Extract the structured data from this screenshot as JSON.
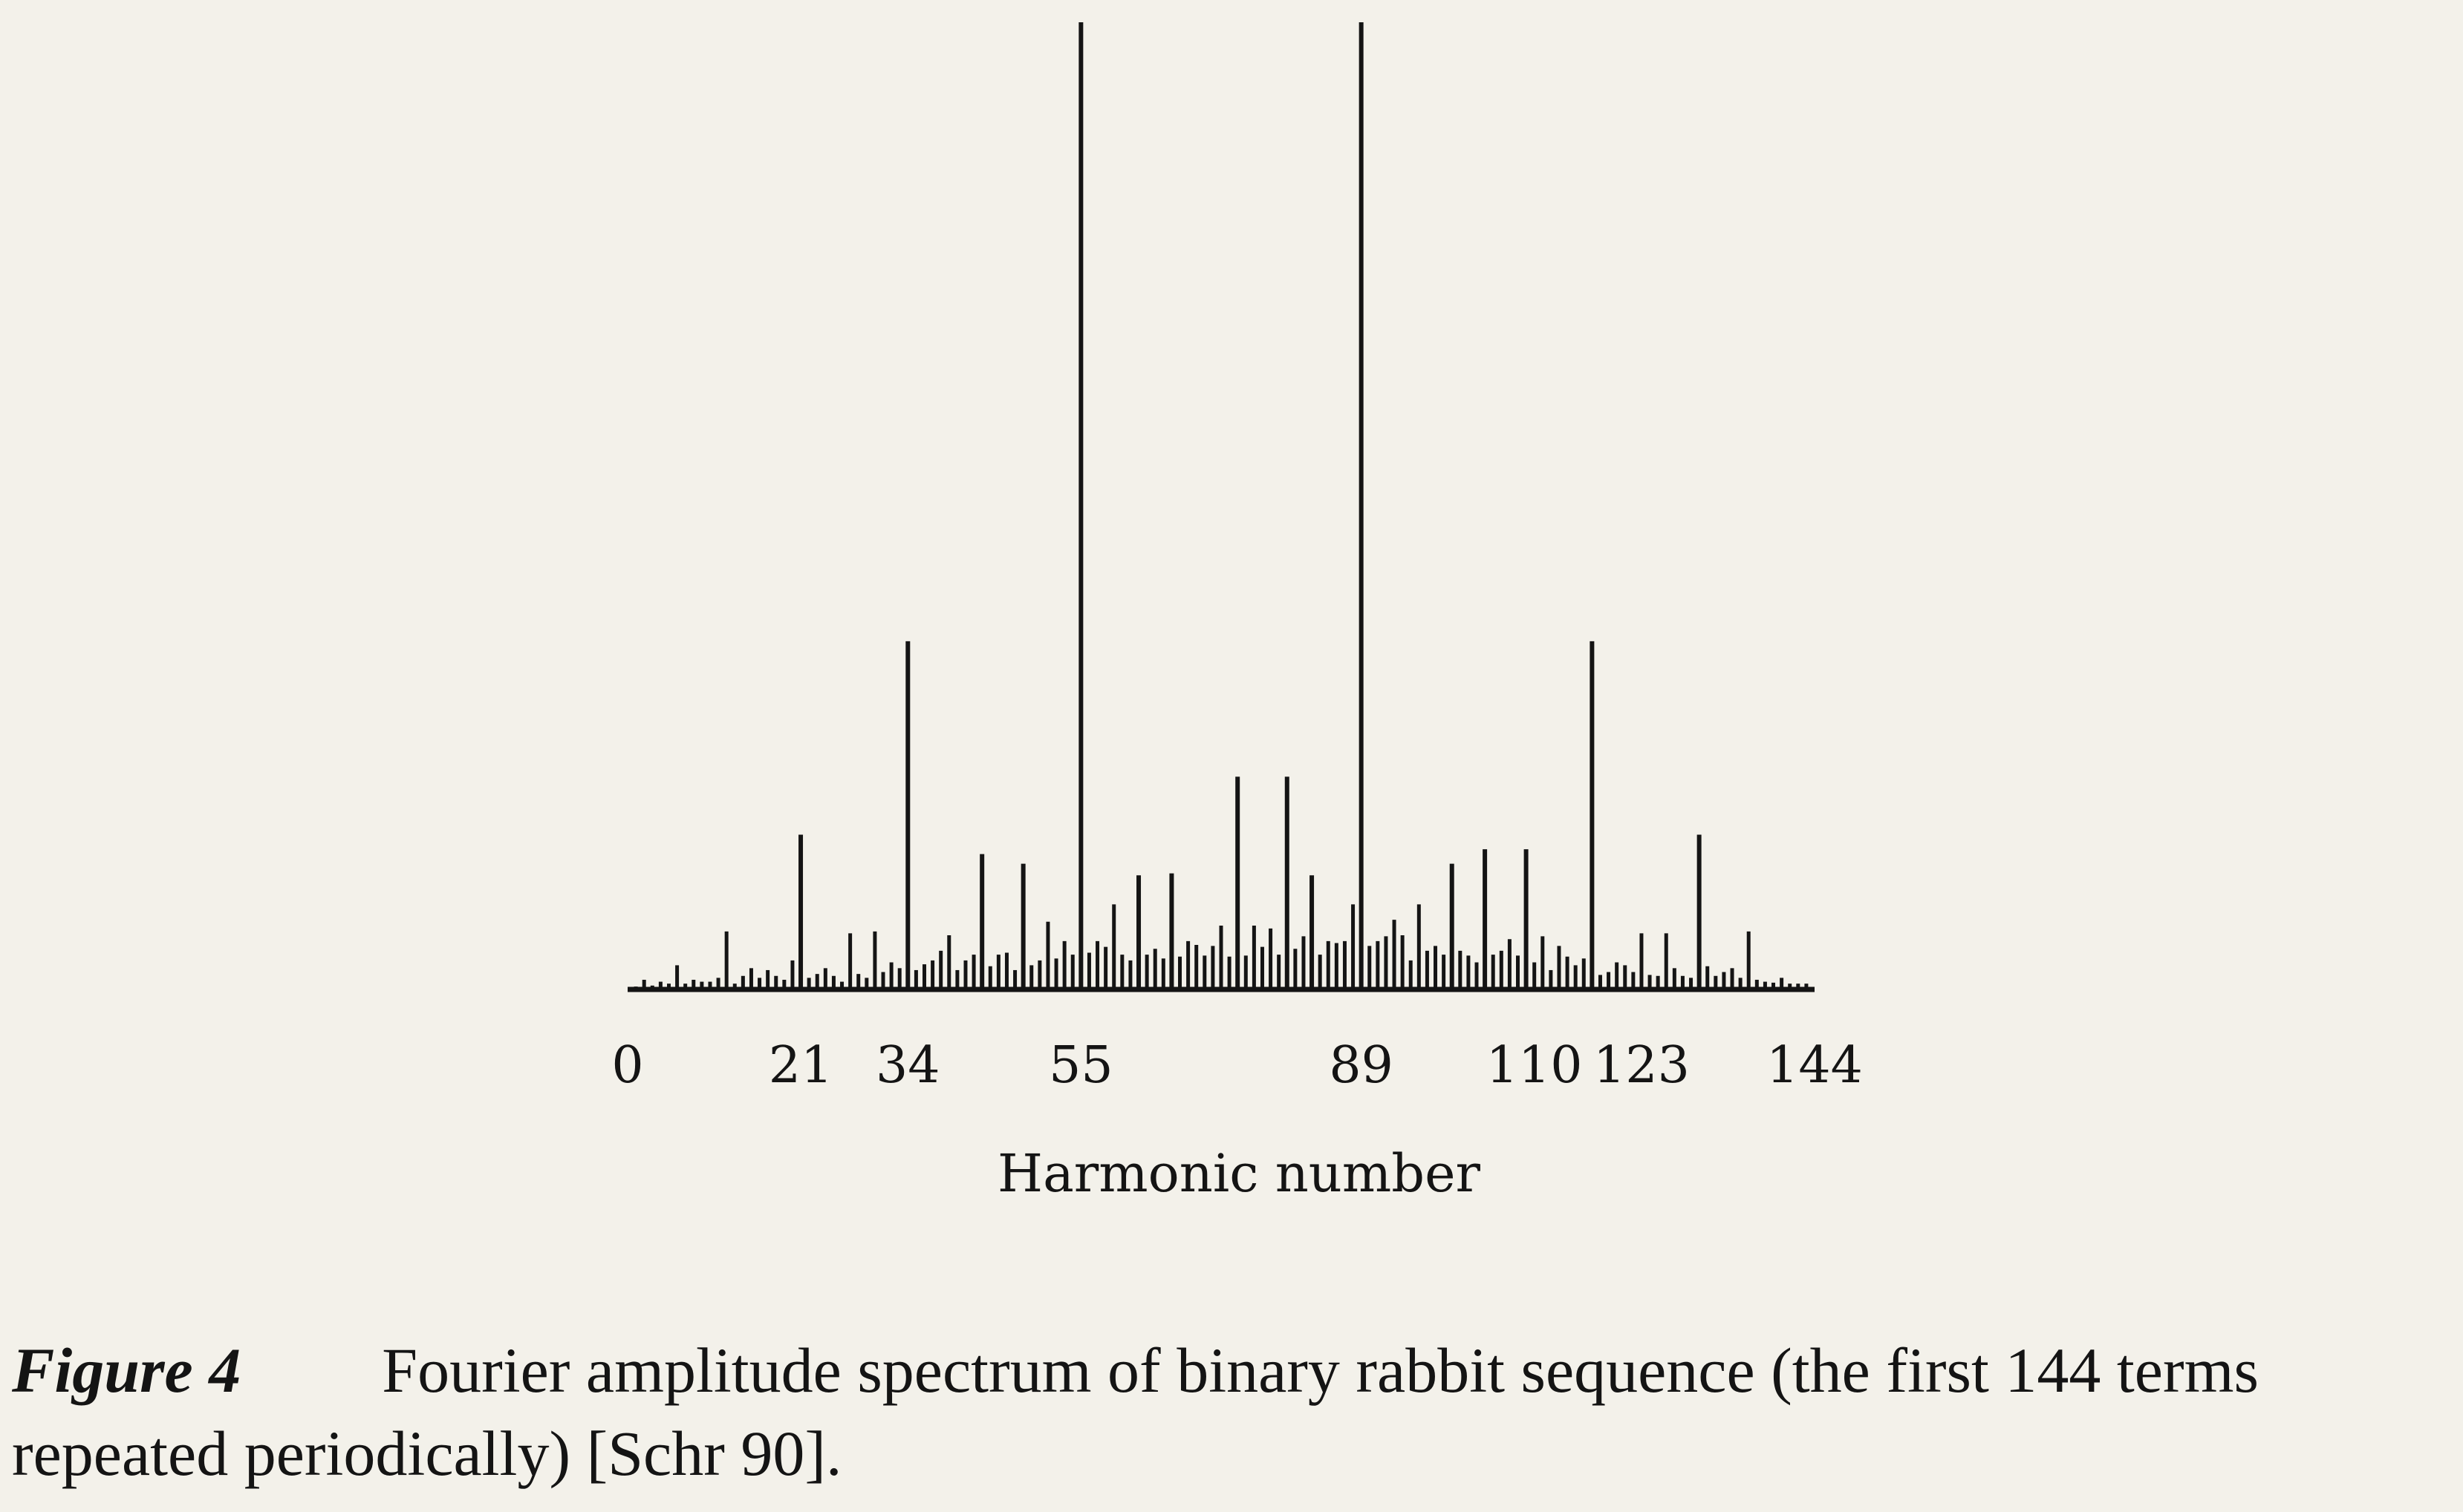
{
  "chart_data": {
    "type": "bar",
    "xlabel": "Harmonic number",
    "ylabel": "",
    "title": "",
    "xlim": [
      0,
      144
    ],
    "ylim": [
      0,
      1.0
    ],
    "xticks": [
      0,
      21,
      34,
      55,
      89,
      110,
      123,
      144
    ],
    "grid": false,
    "legend": "none",
    "x": [
      1,
      2,
      3,
      4,
      5,
      6,
      7,
      8,
      9,
      10,
      11,
      12,
      13,
      14,
      15,
      16,
      17,
      18,
      19,
      20,
      21,
      22,
      23,
      24,
      25,
      26,
      27,
      28,
      29,
      30,
      31,
      32,
      33,
      34,
      35,
      36,
      37,
      38,
      39,
      40,
      41,
      42,
      43,
      44,
      45,
      46,
      47,
      48,
      49,
      50,
      51,
      52,
      53,
      54,
      55,
      56,
      57,
      58,
      59,
      60,
      61,
      62,
      63,
      64,
      65,
      66,
      67,
      68,
      69,
      70,
      71,
      72,
      73,
      74,
      75,
      76,
      77,
      78,
      79,
      80,
      81,
      82,
      83,
      84,
      85,
      86,
      87,
      88,
      89,
      90,
      91,
      92,
      93,
      94,
      95,
      96,
      97,
      98,
      99,
      100,
      101,
      102,
      103,
      104,
      105,
      106,
      107,
      108,
      109,
      110,
      111,
      112,
      113,
      114,
      115,
      116,
      117,
      118,
      119,
      120,
      121,
      122,
      123,
      124,
      125,
      126,
      127,
      128,
      129,
      130,
      131,
      132,
      133,
      134,
      135,
      136,
      137,
      138,
      139,
      140,
      141,
      142,
      143
    ],
    "values": [
      0.003,
      0.01,
      0.004,
      0.008,
      0.006,
      0.025,
      0.006,
      0.01,
      0.008,
      0.008,
      0.012,
      0.06,
      0.006,
      0.014,
      0.022,
      0.012,
      0.02,
      0.014,
      0.01,
      0.03,
      0.16,
      0.012,
      0.016,
      0.022,
      0.014,
      0.008,
      0.058,
      0.016,
      0.012,
      0.06,
      0.018,
      0.028,
      0.022,
      0.36,
      0.02,
      0.026,
      0.03,
      0.04,
      0.056,
      0.02,
      0.03,
      0.036,
      0.14,
      0.024,
      0.036,
      0.038,
      0.02,
      0.13,
      0.025,
      0.03,
      0.07,
      0.032,
      0.05,
      0.036,
      1.0,
      0.038,
      0.05,
      0.044,
      0.088,
      0.036,
      0.03,
      0.118,
      0.036,
      0.042,
      0.032,
      0.12,
      0.034,
      0.05,
      0.046,
      0.035,
      0.045,
      0.066,
      0.034,
      0.22,
      0.035,
      0.066,
      0.044,
      0.063,
      0.036,
      0.22,
      0.042,
      0.055,
      0.118,
      0.036,
      0.05,
      0.048,
      0.05,
      0.088,
      1.0,
      0.045,
      0.05,
      0.055,
      0.072,
      0.056,
      0.03,
      0.088,
      0.04,
      0.045,
      0.036,
      0.13,
      0.04,
      0.035,
      0.028,
      0.145,
      0.036,
      0.04,
      0.052,
      0.035,
      0.145,
      0.028,
      0.055,
      0.02,
      0.045,
      0.034,
      0.025,
      0.032,
      0.36,
      0.015,
      0.018,
      0.028,
      0.025,
      0.018,
      0.058,
      0.015,
      0.014,
      0.058,
      0.022,
      0.014,
      0.012,
      0.16,
      0.024,
      0.014,
      0.018,
      0.022,
      0.012,
      0.06,
      0.01,
      0.008,
      0.007,
      0.012,
      0.006,
      0.006,
      0.006
    ]
  },
  "caption": {
    "figure_label": "Figure 4",
    "text": "Fourier amplitude spectrum of binary rabbit sequence (the first 144 terms repeated periodically) [Schr 90]."
  }
}
